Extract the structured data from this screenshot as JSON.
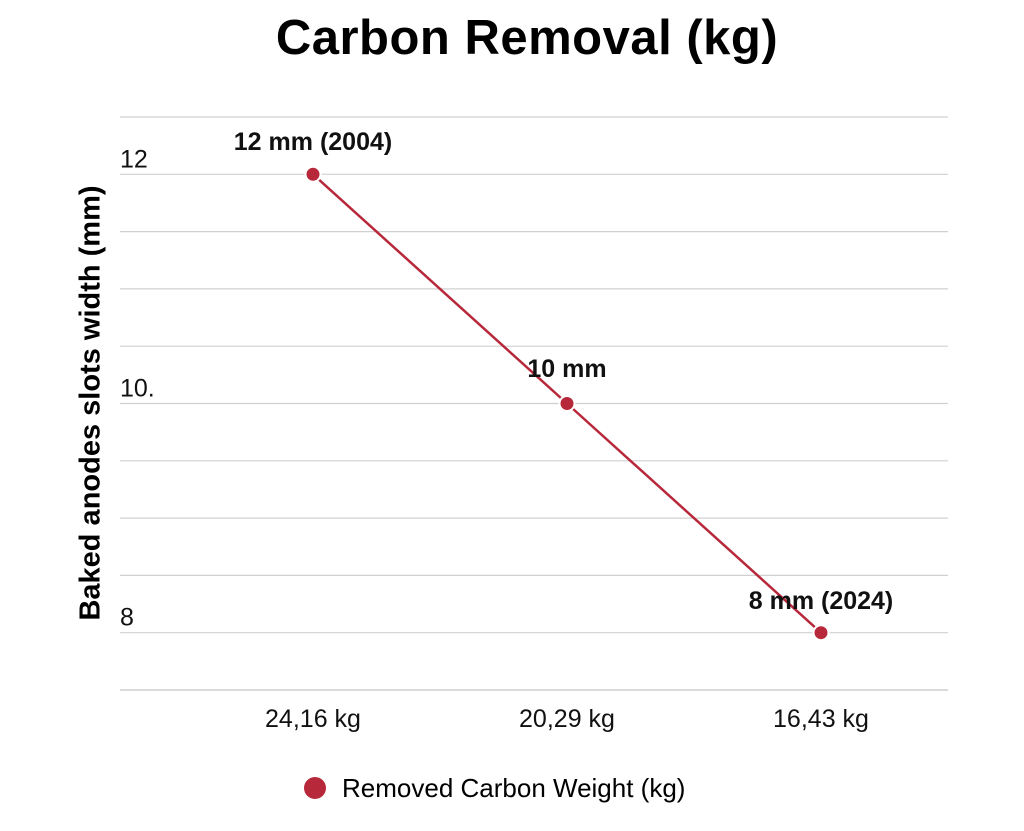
{
  "chart_data": {
    "type": "line",
    "title": "Carbon Removal (kg)",
    "xlabel": "",
    "ylabel": "Baked anodes slots width (mm)",
    "categories": [
      "24,16 kg",
      "20,29 kg",
      "16,43 kg"
    ],
    "series": [
      {
        "name": "Removed Carbon Weight (kg)",
        "values": [
          12,
          10,
          8
        ],
        "color": "#b8283b",
        "data_labels": [
          "12 mm (2004)",
          "10 mm",
          "8 mm (2024)"
        ]
      }
    ],
    "ylim": [
      7.5,
      12.5
    ],
    "y_gridlines": [
      7.5,
      8,
      8.5,
      9,
      9.5,
      10,
      10.5,
      11,
      11.5,
      12,
      12.5
    ],
    "y_tick_labels": [
      {
        "value": 12,
        "label": "12"
      },
      {
        "value": 10,
        "label": "10."
      },
      {
        "value": 8,
        "label": "8"
      }
    ],
    "grid": true,
    "legend_position": "bottom-center"
  }
}
